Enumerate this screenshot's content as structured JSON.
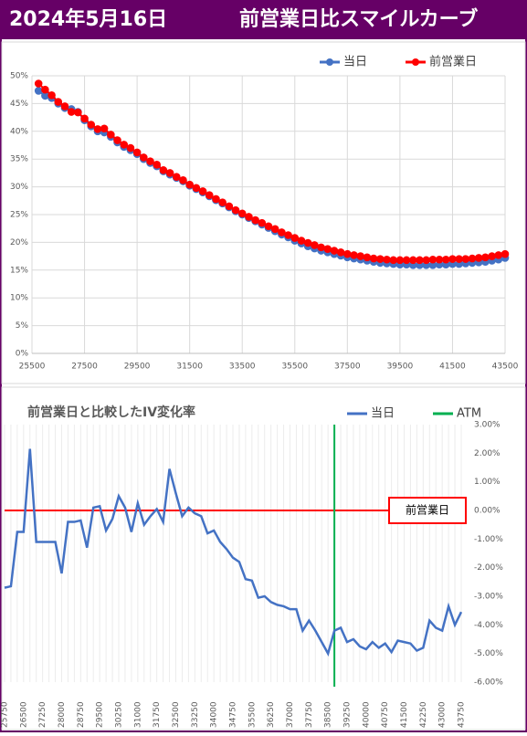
{
  "header": {
    "date": "2024年5月16日",
    "title": "前営業日比スマイルカーブ"
  },
  "chart_data": [
    {
      "type": "scatter",
      "markers": true,
      "x": [
        25750,
        26000,
        26250,
        26500,
        26750,
        27000,
        27250,
        27500,
        27750,
        28000,
        28250,
        28500,
        28750,
        29000,
        29250,
        29500,
        29750,
        30000,
        30250,
        30500,
        30750,
        31000,
        31250,
        31500,
        31750,
        32000,
        32250,
        32500,
        32750,
        33000,
        33250,
        33500,
        33750,
        34000,
        34250,
        34500,
        34750,
        35000,
        35250,
        35500,
        35750,
        36000,
        36250,
        36500,
        36750,
        37000,
        37250,
        37500,
        37750,
        38000,
        38250,
        38500,
        38750,
        39000,
        39250,
        39500,
        39750,
        40000,
        40250,
        40500,
        40750,
        41000,
        41250,
        41500,
        41750,
        42000,
        42250,
        42500,
        42750,
        43000,
        43250,
        43500
      ],
      "series": [
        {
          "name": "当日",
          "color": "#4472c4",
          "values": [
            47.3,
            46.4,
            46.0,
            45.0,
            44.2,
            44.0,
            43.5,
            42.0,
            40.9,
            40.0,
            39.8,
            39.0,
            38.0,
            37.2,
            36.6,
            35.9,
            35.0,
            34.3,
            33.7,
            32.8,
            32.2,
            31.6,
            31.0,
            30.2,
            29.6,
            29.0,
            28.3,
            27.6,
            27.0,
            26.3,
            25.6,
            25.0,
            24.4,
            23.8,
            23.2,
            22.6,
            22.0,
            21.4,
            20.9,
            20.3,
            19.8,
            19.3,
            18.9,
            18.5,
            18.2,
            17.9,
            17.6,
            17.3,
            17.1,
            16.9,
            16.7,
            16.5,
            16.3,
            16.2,
            16.1,
            16.0,
            16.0,
            15.9,
            15.9,
            15.9,
            15.9,
            16.0,
            16.0,
            16.1,
            16.1,
            16.2,
            16.3,
            16.4,
            16.5,
            16.7,
            16.9,
            17.2
          ]
        },
        {
          "name": "前営業日",
          "color": "#ff0000",
          "values": [
            48.6,
            47.5,
            46.5,
            45.3,
            44.5,
            43.5,
            43.4,
            42.3,
            41.2,
            40.4,
            40.5,
            39.4,
            38.4,
            37.6,
            37.0,
            36.2,
            35.3,
            34.6,
            34.0,
            33.0,
            32.5,
            31.8,
            31.2,
            30.4,
            29.8,
            29.2,
            28.5,
            27.8,
            27.2,
            26.5,
            25.8,
            25.2,
            24.6,
            24.0,
            23.5,
            22.9,
            22.4,
            21.8,
            21.3,
            20.8,
            20.3,
            19.9,
            19.5,
            19.1,
            18.8,
            18.5,
            18.2,
            17.9,
            17.7,
            17.5,
            17.3,
            17.1,
            17.0,
            16.9,
            16.8,
            16.8,
            16.8,
            16.8,
            16.8,
            16.8,
            16.9,
            16.9,
            16.9,
            17.0,
            17.0,
            17.0,
            17.1,
            17.2,
            17.3,
            17.5,
            17.7,
            17.9
          ]
        }
      ],
      "xlim": [
        25500,
        43500
      ],
      "xticks": [
        25500,
        27500,
        29500,
        31500,
        33500,
        35500,
        37500,
        39500,
        41500,
        43500
      ],
      "ylim": [
        0,
        50
      ],
      "yticks": [
        {
          "value": 0,
          "label": "0%"
        },
        {
          "value": 5,
          "label": "5%"
        },
        {
          "value": 10,
          "label": "10%"
        },
        {
          "value": 15,
          "label": "15%"
        },
        {
          "value": 20,
          "label": "20%"
        },
        {
          "value": 25,
          "label": "25%"
        },
        {
          "value": 30,
          "label": "30%"
        },
        {
          "value": 35,
          "label": "35%"
        },
        {
          "value": 40,
          "label": "40%"
        },
        {
          "value": 45,
          "label": "45%"
        },
        {
          "value": 50,
          "label": "50%"
        }
      ],
      "grid": true,
      "legend": "top"
    },
    {
      "type": "line",
      "title": "前営業日と比較したIV変化率",
      "categories": [
        "25750",
        null,
        null,
        "26500",
        null,
        null,
        "27250",
        null,
        null,
        "28000",
        null,
        null,
        "28750",
        null,
        null,
        "29500",
        null,
        null,
        "30250",
        null,
        null,
        "31000",
        null,
        null,
        "31750",
        null,
        null,
        "32500",
        null,
        null,
        "33250",
        null,
        null,
        "34000",
        null,
        null,
        "34750",
        null,
        null,
        "35500",
        null,
        null,
        "36250",
        null,
        null,
        "37000",
        null,
        null,
        "37750",
        null,
        null,
        "38500",
        null,
        null,
        "39250",
        null,
        null,
        "40000",
        null,
        null,
        "40750",
        null,
        null,
        "41500",
        null,
        null,
        "42250",
        null,
        null,
        "43000",
        null,
        null,
        "43750"
      ],
      "series": [
        {
          "name": "当日",
          "color": "#4472c4",
          "values": [
            -2.7,
            -2.65,
            -0.75,
            -0.75,
            2.15,
            -1.1,
            -1.1,
            -1.1,
            -1.1,
            -2.2,
            -0.4,
            -0.4,
            -0.35,
            -1.3,
            0.1,
            0.15,
            -0.7,
            -0.3,
            0.5,
            0.1,
            -0.75,
            0.25,
            -0.5,
            -0.2,
            0.05,
            -0.4,
            1.45,
            0.6,
            -0.2,
            0.1,
            -0.1,
            -0.2,
            -0.8,
            -0.7,
            -1.1,
            -1.35,
            -1.65,
            -1.8,
            -2.4,
            -2.45,
            -3.05,
            -3.0,
            -3.2,
            -3.3,
            -3.35,
            -3.45,
            -3.45,
            -4.2,
            -3.85,
            -4.2,
            -4.6,
            -5.0,
            -4.2,
            -4.1,
            -4.6,
            -4.5,
            -4.75,
            -4.85,
            -4.6,
            -4.8,
            -4.65,
            -4.95,
            -4.55,
            -4.6,
            -4.65,
            -4.9,
            -4.8,
            -3.85,
            -4.1,
            -4.2,
            -3.35,
            -4.0,
            -3.55
          ]
        }
      ],
      "vlines": [
        {
          "name": "ATM",
          "color": "#00b050",
          "x": 38750
        }
      ],
      "hlines": [
        {
          "label": "前営業日",
          "color": "#ff0000",
          "y": 0
        }
      ],
      "ylim": [
        -6,
        3
      ],
      "yticks": [
        {
          "value": 3,
          "label": "3.00%"
        },
        {
          "value": 2,
          "label": "2.00%"
        },
        {
          "value": 1,
          "label": "1.00%"
        },
        {
          "value": 0,
          "label": "0.00%"
        },
        {
          "value": -1,
          "label": "-1.00%"
        },
        {
          "value": -2,
          "label": "-2.00%"
        },
        {
          "value": -3,
          "label": "-3.00%"
        },
        {
          "value": -4,
          "label": "-4.00%"
        },
        {
          "value": -5,
          "label": "-5.00%"
        },
        {
          "value": -6,
          "label": "-6.00%"
        }
      ],
      "yaxis_position": "right",
      "grid": true,
      "legend": "top"
    }
  ]
}
